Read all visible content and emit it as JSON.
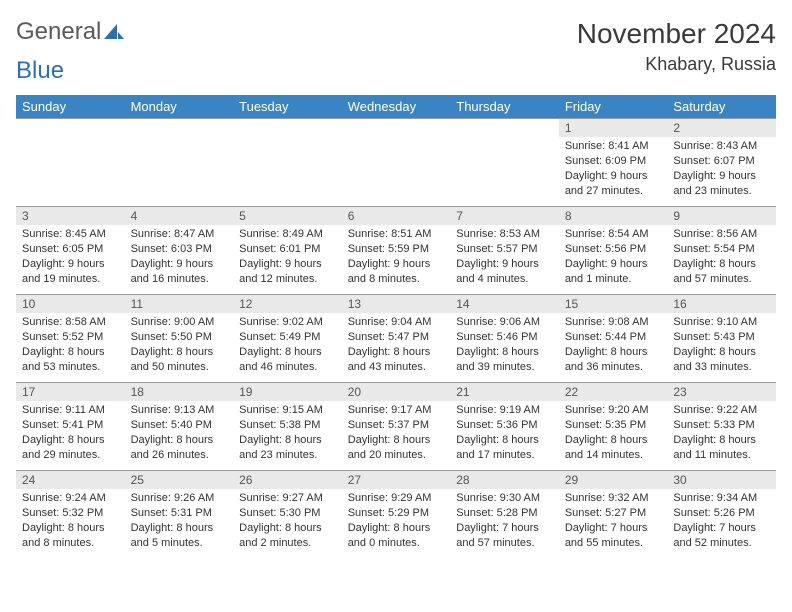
{
  "brand": {
    "word1": "General",
    "word2": "Blue",
    "logo_color": "#2d6fb5"
  },
  "title": "November 2024",
  "location": "Khabary, Russia",
  "colors": {
    "header_bg": "#3b84c4",
    "header_text": "#ffffff",
    "daynum_bg": "#e9e9e9",
    "border": "#999999",
    "text": "#333333"
  },
  "weekdays": [
    "Sunday",
    "Monday",
    "Tuesday",
    "Wednesday",
    "Thursday",
    "Friday",
    "Saturday"
  ],
  "weeks": [
    [
      null,
      null,
      null,
      null,
      null,
      {
        "n": "1",
        "sr": "Sunrise: 8:41 AM",
        "ss": "Sunset: 6:09 PM",
        "dl": "Daylight: 9 hours and 27 minutes."
      },
      {
        "n": "2",
        "sr": "Sunrise: 8:43 AM",
        "ss": "Sunset: 6:07 PM",
        "dl": "Daylight: 9 hours and 23 minutes."
      }
    ],
    [
      {
        "n": "3",
        "sr": "Sunrise: 8:45 AM",
        "ss": "Sunset: 6:05 PM",
        "dl": "Daylight: 9 hours and 19 minutes."
      },
      {
        "n": "4",
        "sr": "Sunrise: 8:47 AM",
        "ss": "Sunset: 6:03 PM",
        "dl": "Daylight: 9 hours and 16 minutes."
      },
      {
        "n": "5",
        "sr": "Sunrise: 8:49 AM",
        "ss": "Sunset: 6:01 PM",
        "dl": "Daylight: 9 hours and 12 minutes."
      },
      {
        "n": "6",
        "sr": "Sunrise: 8:51 AM",
        "ss": "Sunset: 5:59 PM",
        "dl": "Daylight: 9 hours and 8 minutes."
      },
      {
        "n": "7",
        "sr": "Sunrise: 8:53 AM",
        "ss": "Sunset: 5:57 PM",
        "dl": "Daylight: 9 hours and 4 minutes."
      },
      {
        "n": "8",
        "sr": "Sunrise: 8:54 AM",
        "ss": "Sunset: 5:56 PM",
        "dl": "Daylight: 9 hours and 1 minute."
      },
      {
        "n": "9",
        "sr": "Sunrise: 8:56 AM",
        "ss": "Sunset: 5:54 PM",
        "dl": "Daylight: 8 hours and 57 minutes."
      }
    ],
    [
      {
        "n": "10",
        "sr": "Sunrise: 8:58 AM",
        "ss": "Sunset: 5:52 PM",
        "dl": "Daylight: 8 hours and 53 minutes."
      },
      {
        "n": "11",
        "sr": "Sunrise: 9:00 AM",
        "ss": "Sunset: 5:50 PM",
        "dl": "Daylight: 8 hours and 50 minutes."
      },
      {
        "n": "12",
        "sr": "Sunrise: 9:02 AM",
        "ss": "Sunset: 5:49 PM",
        "dl": "Daylight: 8 hours and 46 minutes."
      },
      {
        "n": "13",
        "sr": "Sunrise: 9:04 AM",
        "ss": "Sunset: 5:47 PM",
        "dl": "Daylight: 8 hours and 43 minutes."
      },
      {
        "n": "14",
        "sr": "Sunrise: 9:06 AM",
        "ss": "Sunset: 5:46 PM",
        "dl": "Daylight: 8 hours and 39 minutes."
      },
      {
        "n": "15",
        "sr": "Sunrise: 9:08 AM",
        "ss": "Sunset: 5:44 PM",
        "dl": "Daylight: 8 hours and 36 minutes."
      },
      {
        "n": "16",
        "sr": "Sunrise: 9:10 AM",
        "ss": "Sunset: 5:43 PM",
        "dl": "Daylight: 8 hours and 33 minutes."
      }
    ],
    [
      {
        "n": "17",
        "sr": "Sunrise: 9:11 AM",
        "ss": "Sunset: 5:41 PM",
        "dl": "Daylight: 8 hours and 29 minutes."
      },
      {
        "n": "18",
        "sr": "Sunrise: 9:13 AM",
        "ss": "Sunset: 5:40 PM",
        "dl": "Daylight: 8 hours and 26 minutes."
      },
      {
        "n": "19",
        "sr": "Sunrise: 9:15 AM",
        "ss": "Sunset: 5:38 PM",
        "dl": "Daylight: 8 hours and 23 minutes."
      },
      {
        "n": "20",
        "sr": "Sunrise: 9:17 AM",
        "ss": "Sunset: 5:37 PM",
        "dl": "Daylight: 8 hours and 20 minutes."
      },
      {
        "n": "21",
        "sr": "Sunrise: 9:19 AM",
        "ss": "Sunset: 5:36 PM",
        "dl": "Daylight: 8 hours and 17 minutes."
      },
      {
        "n": "22",
        "sr": "Sunrise: 9:20 AM",
        "ss": "Sunset: 5:35 PM",
        "dl": "Daylight: 8 hours and 14 minutes."
      },
      {
        "n": "23",
        "sr": "Sunrise: 9:22 AM",
        "ss": "Sunset: 5:33 PM",
        "dl": "Daylight: 8 hours and 11 minutes."
      }
    ],
    [
      {
        "n": "24",
        "sr": "Sunrise: 9:24 AM",
        "ss": "Sunset: 5:32 PM",
        "dl": "Daylight: 8 hours and 8 minutes."
      },
      {
        "n": "25",
        "sr": "Sunrise: 9:26 AM",
        "ss": "Sunset: 5:31 PM",
        "dl": "Daylight: 8 hours and 5 minutes."
      },
      {
        "n": "26",
        "sr": "Sunrise: 9:27 AM",
        "ss": "Sunset: 5:30 PM",
        "dl": "Daylight: 8 hours and 2 minutes."
      },
      {
        "n": "27",
        "sr": "Sunrise: 9:29 AM",
        "ss": "Sunset: 5:29 PM",
        "dl": "Daylight: 8 hours and 0 minutes."
      },
      {
        "n": "28",
        "sr": "Sunrise: 9:30 AM",
        "ss": "Sunset: 5:28 PM",
        "dl": "Daylight: 7 hours and 57 minutes."
      },
      {
        "n": "29",
        "sr": "Sunrise: 9:32 AM",
        "ss": "Sunset: 5:27 PM",
        "dl": "Daylight: 7 hours and 55 minutes."
      },
      {
        "n": "30",
        "sr": "Sunrise: 9:34 AM",
        "ss": "Sunset: 5:26 PM",
        "dl": "Daylight: 7 hours and 52 minutes."
      }
    ]
  ]
}
